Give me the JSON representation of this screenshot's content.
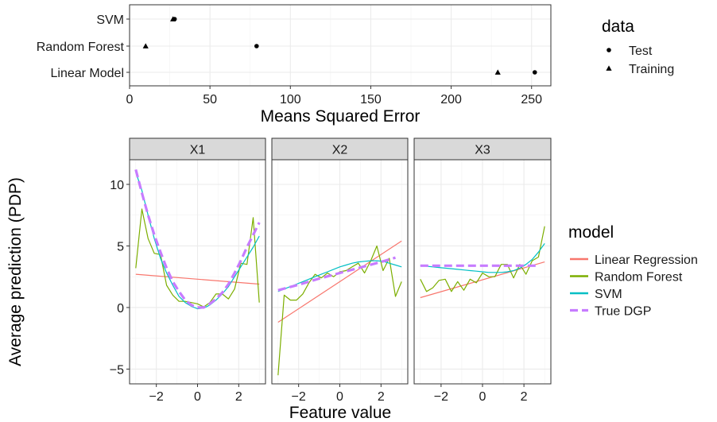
{
  "chart_data": [
    {
      "type": "scatter",
      "xlabel": "Means Squared Error",
      "xlim": [
        0,
        262
      ],
      "xticks": [
        0,
        50,
        100,
        150,
        200,
        250
      ],
      "categories": [
        "SVM",
        "Random Forest",
        "Linear Model"
      ],
      "legend": {
        "title": "data",
        "placement": "right",
        "entries": [
          {
            "label": "Test",
            "shape": "circle"
          },
          {
            "label": "Training",
            "shape": "triangle"
          }
        ]
      },
      "series": [
        {
          "name": "Test",
          "shape": "circle",
          "points": [
            {
              "category": "SVM",
              "x": 28
            },
            {
              "category": "Random Forest",
              "x": 79
            },
            {
              "category": "Linear Model",
              "x": 252
            }
          ]
        },
        {
          "name": "Training",
          "shape": "triangle",
          "points": [
            {
              "category": "SVM",
              "x": 27
            },
            {
              "category": "Random Forest",
              "x": 10
            },
            {
              "category": "Linear Model",
              "x": 229
            }
          ]
        }
      ]
    },
    {
      "type": "line",
      "ylabel": "Average prediction (PDP)",
      "xlabel": "Feature value",
      "ylim": [
        -6.2,
        12.0
      ],
      "xlim": [
        -3.3,
        3.3
      ],
      "yticks": [
        -5,
        0,
        5,
        10
      ],
      "xticks": [
        -2,
        0,
        2
      ],
      "grid": true,
      "legend": {
        "title": "model",
        "placement": "right",
        "entries": [
          {
            "label": "Linear Regression",
            "color": "#F8766D"
          },
          {
            "label": "Random Forest",
            "color": "#7CAE00"
          },
          {
            "label": "SVM",
            "color": "#00BFC4"
          },
          {
            "label": "True DGP",
            "color": "#C77CFF"
          }
        ]
      },
      "panels": [
        {
          "name": "X1",
          "series": [
            {
              "name": "Linear Regression",
              "x": [
                -3.0,
                3.0
              ],
              "y": [
                2.7,
                1.9
              ]
            },
            {
              "name": "Random Forest",
              "x": [
                -3.0,
                -2.7,
                -2.4,
                -2.1,
                -1.8,
                -1.5,
                -1.2,
                -0.9,
                -0.6,
                -0.3,
                0.0,
                0.3,
                0.6,
                0.9,
                1.2,
                1.5,
                1.8,
                2.1,
                2.4,
                2.7,
                3.0
              ],
              "y": [
                3.2,
                8.0,
                5.6,
                4.4,
                4.3,
                1.8,
                1.0,
                0.5,
                0.5,
                0.4,
                0.3,
                0.05,
                0.4,
                1.1,
                1.1,
                0.7,
                1.5,
                3.6,
                3.5,
                7.3,
                0.4
              ]
            },
            {
              "name": "SVM",
              "x": [
                -3.0,
                -2.7,
                -2.4,
                -2.1,
                -1.8,
                -1.5,
                -1.2,
                -0.9,
                -0.6,
                -0.3,
                0.0,
                0.3,
                0.6,
                0.9,
                1.2,
                1.5,
                1.8,
                2.1,
                2.4,
                2.7,
                3.0
              ],
              "y": [
                11.0,
                9.5,
                7.5,
                5.6,
                4.0,
                2.8,
                1.8,
                0.9,
                0.4,
                0.1,
                -0.1,
                -0.05,
                0.2,
                0.6,
                1.1,
                1.7,
                2.5,
                3.3,
                4.1,
                4.9,
                5.8
              ]
            },
            {
              "name": "True DGP",
              "x": [
                -3.0,
                -2.7,
                -2.4,
                -2.1,
                -1.8,
                -1.5,
                -1.2,
                -0.9,
                -0.6,
                -0.3,
                0.0,
                0.3,
                0.6,
                0.9,
                1.2,
                1.5,
                1.8,
                2.1,
                2.4,
                2.7,
                3.0
              ],
              "y": [
                11.2,
                9.3,
                7.5,
                5.9,
                4.5,
                3.2,
                2.1,
                1.3,
                0.6,
                0.2,
                0.0,
                0.0,
                0.3,
                0.7,
                1.2,
                1.9,
                2.8,
                3.8,
                4.9,
                5.9,
                6.9
              ]
            }
          ]
        },
        {
          "name": "X2",
          "series": [
            {
              "name": "Linear Regression",
              "x": [
                -3.0,
                3.0
              ],
              "y": [
                -1.2,
                5.4
              ]
            },
            {
              "name": "Random Forest",
              "x": [
                -3.0,
                -2.7,
                -2.4,
                -2.1,
                -1.8,
                -1.5,
                -1.2,
                -0.9,
                -0.6,
                -0.3,
                0.0,
                0.3,
                0.6,
                0.9,
                1.2,
                1.5,
                1.8,
                2.1,
                2.4,
                2.7,
                3.0
              ],
              "y": [
                -5.5,
                1.0,
                0.6,
                0.6,
                1.1,
                2.0,
                2.7,
                2.4,
                2.8,
                2.5,
                2.9,
                3.0,
                3.3,
                3.6,
                2.8,
                3.8,
                5.0,
                3.0,
                4.0,
                0.9,
                2.1
              ]
            },
            {
              "name": "SVM",
              "x": [
                -3.0,
                -2.7,
                -2.4,
                -2.1,
                -1.8,
                -1.5,
                -1.2,
                -0.9,
                -0.6,
                -0.3,
                0.0,
                0.3,
                0.6,
                0.9,
                1.2,
                1.5,
                1.8,
                2.1,
                2.4,
                2.7,
                3.0
              ],
              "y": [
                1.3,
                1.5,
                1.7,
                1.9,
                2.1,
                2.3,
                2.5,
                2.7,
                2.9,
                3.1,
                3.3,
                3.45,
                3.6,
                3.7,
                3.75,
                3.8,
                3.8,
                3.75,
                3.6,
                3.45,
                3.3
              ]
            },
            {
              "name": "True DGP",
              "x": [
                -3.0,
                -2.0,
                -1.0,
                0.0,
                1.0,
                2.0,
                2.7
              ],
              "y": [
                1.4,
                1.85,
                2.35,
                2.8,
                3.25,
                3.7,
                4.05
              ]
            }
          ]
        },
        {
          "name": "X3",
          "series": [
            {
              "name": "Linear Regression",
              "x": [
                -3.0,
                3.0
              ],
              "y": [
                0.8,
                3.7
              ]
            },
            {
              "name": "Random Forest",
              "x": [
                -3.0,
                -2.7,
                -2.4,
                -2.1,
                -1.8,
                -1.5,
                -1.2,
                -0.9,
                -0.6,
                -0.3,
                0.0,
                0.3,
                0.6,
                0.9,
                1.2,
                1.5,
                1.8,
                2.1,
                2.4,
                2.7,
                3.0
              ],
              "y": [
                2.3,
                1.3,
                1.6,
                2.2,
                2.3,
                1.3,
                2.1,
                1.4,
                2.3,
                2.0,
                2.8,
                2.5,
                2.5,
                3.5,
                3.5,
                2.4,
                3.5,
                2.7,
                3.8,
                4.1,
                6.6
              ]
            },
            {
              "name": "SVM",
              "x": [
                -3.0,
                -2.7,
                -2.4,
                -2.1,
                -1.8,
                -1.5,
                -1.2,
                -0.9,
                -0.6,
                -0.3,
                0.0,
                0.3,
                0.6,
                0.9,
                1.2,
                1.5,
                1.8,
                2.1,
                2.4,
                2.7,
                3.0
              ],
              "y": [
                3.4,
                3.35,
                3.3,
                3.25,
                3.2,
                3.15,
                3.1,
                3.05,
                3.0,
                2.95,
                2.9,
                2.85,
                2.85,
                2.85,
                2.9,
                3.0,
                3.2,
                3.5,
                3.9,
                4.5,
                5.2
              ]
            },
            {
              "name": "True DGP",
              "x": [
                -3.0,
                2.7
              ],
              "y": [
                3.4,
                3.4
              ]
            }
          ]
        }
      ]
    }
  ]
}
